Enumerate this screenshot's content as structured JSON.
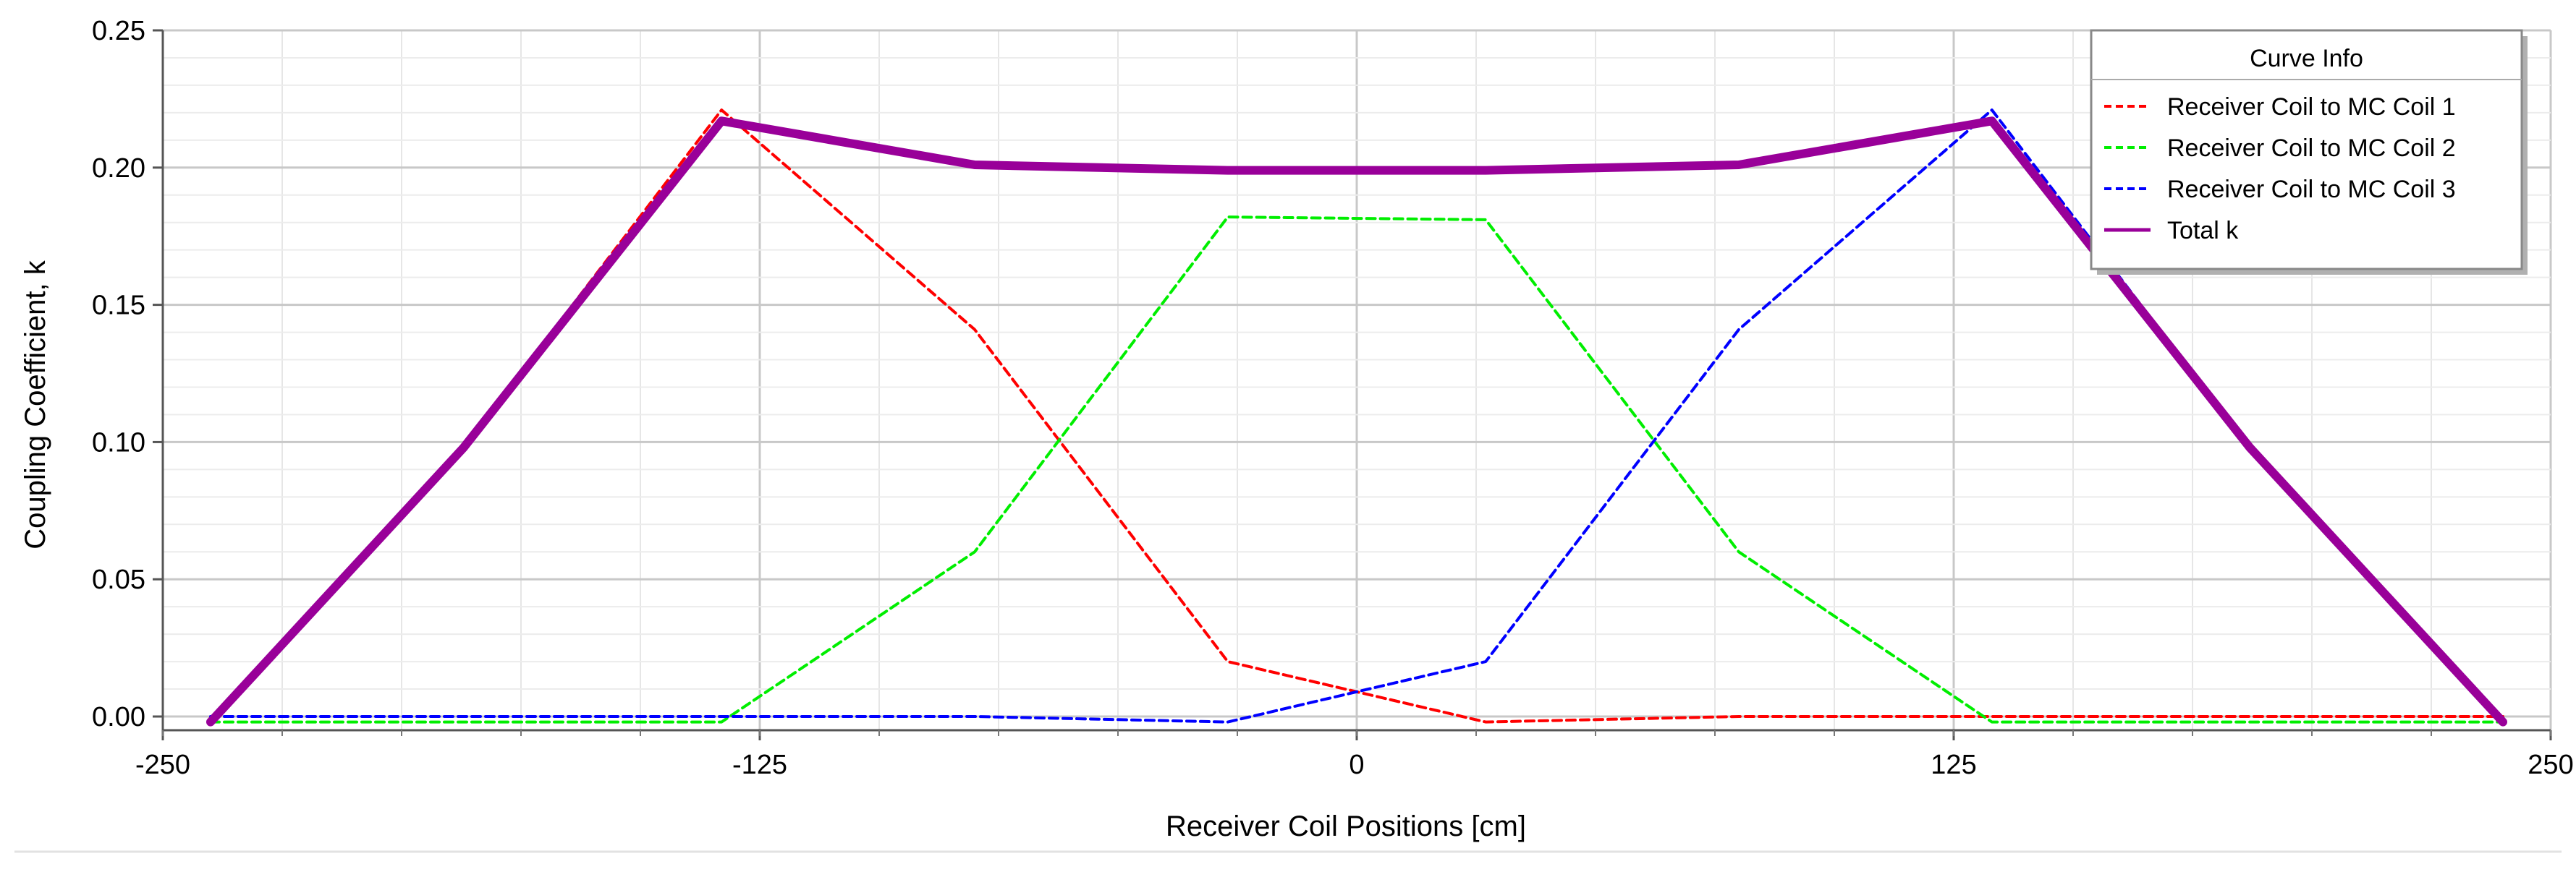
{
  "chart_data": {
    "type": "line",
    "xlabel": "Receiver Coil Positions [cm]",
    "ylabel": "Coupling Coefficient, k",
    "xlim": [
      -250,
      250
    ],
    "ylim": [
      -0.005,
      0.25
    ],
    "x_ticks": [
      -250,
      -125,
      0,
      125,
      250
    ],
    "y_ticks": [
      "0.00",
      "0.05",
      "0.10",
      "0.15",
      "0.20",
      "0.25"
    ],
    "grid": true,
    "legend_title": "Curve Info",
    "legend_position": "top-right",
    "series": [
      {
        "name": "Receiver Coil to MC Coil 1",
        "color": "#ff0000",
        "style": "dashed",
        "x": [
          -240,
          -187,
          -133,
          -80,
          -27,
          27,
          80,
          133,
          187,
          240
        ],
        "y": [
          -0.002,
          0.098,
          0.221,
          0.141,
          0.02,
          -0.002,
          0.0,
          0.0,
          0.0,
          0.0
        ]
      },
      {
        "name": "Receiver Coil to MC Coil 2",
        "color": "#00ee00",
        "style": "dashed",
        "x": [
          -240,
          -187,
          -133,
          -80,
          -27,
          27,
          80,
          133,
          187,
          240
        ],
        "y": [
          -0.002,
          -0.002,
          -0.002,
          0.06,
          0.182,
          0.181,
          0.06,
          -0.002,
          -0.002,
          -0.002
        ]
      },
      {
        "name": "Receiver Coil to MC Coil 3",
        "color": "#0000ff",
        "style": "dashed",
        "x": [
          -240,
          -187,
          -133,
          -80,
          -27,
          27,
          80,
          133,
          187,
          240
        ],
        "y": [
          0.0,
          0.0,
          0.0,
          0.0,
          -0.002,
          0.02,
          0.141,
          0.221,
          0.098,
          -0.002
        ]
      },
      {
        "name": "Total k",
        "color": "#990099",
        "style": "solid",
        "x": [
          -240,
          -187,
          -133,
          -80,
          -27,
          27,
          80,
          133,
          187,
          240
        ],
        "y": [
          -0.002,
          0.098,
          0.217,
          0.201,
          0.199,
          0.199,
          0.201,
          0.217,
          0.098,
          -0.002
        ]
      }
    ]
  }
}
